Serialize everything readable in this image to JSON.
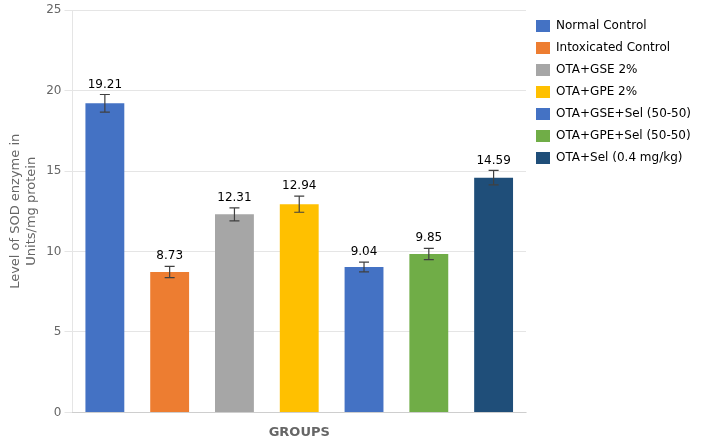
{
  "chart_data": {
    "type": "bar",
    "xlabel": "GROUPS",
    "ylabel": "Level of SOD enzyme in\nUnits/mg protein",
    "categories": [
      "Normal Control",
      "Intoxicated Control",
      "OTA+GSE 2%",
      "OTA+GPE 2%",
      "OTA+GSE+Sel (50-50)",
      "OTA+GPE+Sel (50-50)",
      "OTA+Sel (0.4 mg/kg)"
    ],
    "values": [
      19.21,
      8.73,
      12.31,
      12.94,
      9.04,
      9.85,
      14.59
    ],
    "errors": [
      0.55,
      0.35,
      0.4,
      0.5,
      0.3,
      0.35,
      0.45
    ],
    "colors": [
      "#4472C4",
      "#ED7D31",
      "#A6A6A6",
      "#FFC000",
      "#4472C4",
      "#70AD47",
      "#1F4E79"
    ],
    "ylim": [
      0,
      25
    ],
    "yticks": [
      0,
      5,
      10,
      15,
      20,
      25
    ],
    "grid": true,
    "legend": "right",
    "data_labels": true,
    "tick_labels": "y"
  }
}
